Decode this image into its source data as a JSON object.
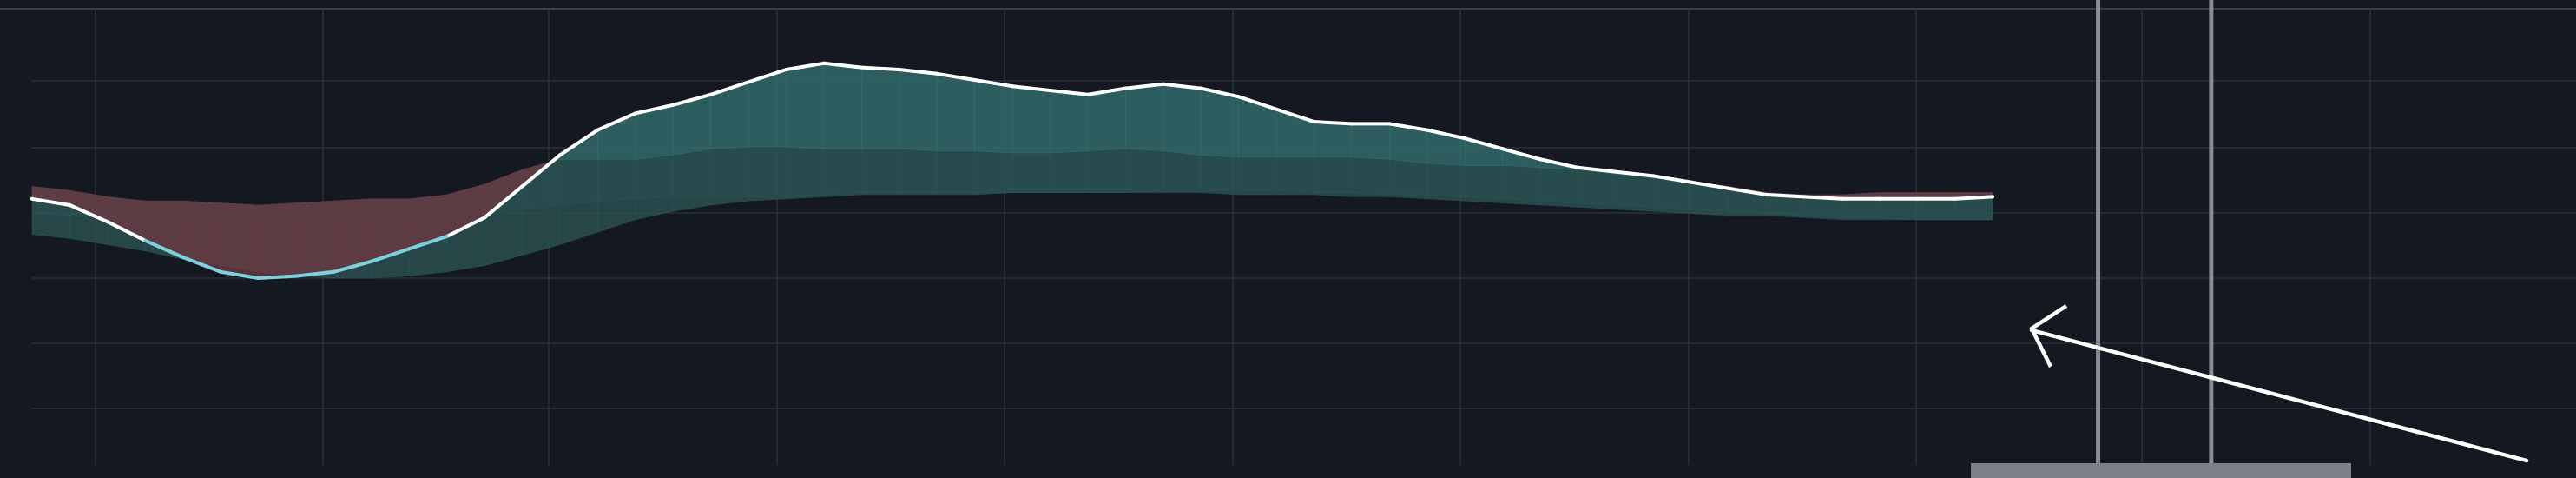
{
  "colors": {
    "background": "#141821",
    "grid": "#2a303b",
    "top_rule": "#3a404b",
    "price_line": "#ffffff",
    "price_line_low": "#7fd0dc",
    "fill_up": "#35716f",
    "fill_down": "#6b3a40",
    "band_up": "#2c5656",
    "band_down": "#4a2f37",
    "cursor_line": "#8a8d96",
    "scrollbar": "#7c7f8a",
    "arrow": "#ffffff"
  },
  "icons": {
    "pointer": "arrow-cursor-icon"
  },
  "chart_data": {
    "type": "area",
    "title": "",
    "xlabel": "",
    "ylabel": "",
    "grid": true,
    "x": [
      0,
      1,
      2,
      3,
      4,
      5,
      6,
      7,
      8,
      9,
      10,
      11,
      12,
      13,
      14,
      15,
      16,
      17,
      18,
      19,
      20,
      21,
      22,
      23,
      24,
      25,
      26,
      27,
      28,
      29,
      30,
      31,
      32,
      33,
      34,
      35,
      36,
      37,
      38,
      39,
      40,
      41,
      42,
      43,
      44,
      45,
      46,
      47,
      48,
      49,
      50,
      51,
      52
    ],
    "xlim": [
      0,
      52
    ],
    "ylim": [
      -1,
      1
    ],
    "series": [
      {
        "values": [
          0.13,
          0.1,
          0.02,
          -0.07,
          -0.15,
          -0.22,
          -0.25,
          -0.24,
          -0.22,
          -0.17,
          -0.11,
          -0.05,
          0.04,
          0.19,
          0.34,
          0.46,
          0.54,
          0.58,
          0.63,
          0.69,
          0.75,
          0.78,
          0.76,
          0.75,
          0.73,
          0.7,
          0.67,
          0.65,
          0.63,
          0.66,
          0.68,
          0.66,
          0.62,
          0.56,
          0.5,
          0.49,
          0.49,
          0.46,
          0.42,
          0.37,
          0.32,
          0.28,
          0.26,
          0.24,
          0.21,
          0.18,
          0.15,
          0.14,
          0.13,
          0.13,
          0.13,
          0.13,
          0.14
        ]
      },
      {
        "values": [
          0.19,
          0.17,
          0.14,
          0.12,
          0.12,
          0.11,
          0.1,
          0.11,
          0.12,
          0.13,
          0.13,
          0.15,
          0.2,
          0.27,
          0.32,
          0.32,
          0.32,
          0.34,
          0.37,
          0.38,
          0.38,
          0.37,
          0.37,
          0.37,
          0.36,
          0.36,
          0.35,
          0.35,
          0.36,
          0.37,
          0.36,
          0.34,
          0.33,
          0.33,
          0.33,
          0.33,
          0.32,
          0.3,
          0.29,
          0.29,
          0.28,
          0.27,
          0.25,
          0.23,
          0.21,
          0.19,
          0.16,
          0.15,
          0.15,
          0.16,
          0.16,
          0.16,
          0.16
        ]
      },
      {
        "values": [
          0.06,
          0.05,
          0.04,
          0.04,
          0.04,
          0.03,
          0.04,
          0.05,
          0.05,
          0.06,
          0.06,
          0.06,
          0.07,
          0.08,
          0.1,
          0.12,
          0.13,
          0.14,
          0.14,
          0.14,
          0.14,
          0.15,
          0.16,
          0.16,
          0.16,
          0.16,
          0.16,
          0.16,
          0.16,
          0.16,
          0.17,
          0.17,
          0.17,
          0.17,
          0.16,
          0.16,
          0.15,
          0.15,
          0.14,
          0.13,
          0.12,
          0.11,
          0.1,
          0.09,
          0.08,
          0.07,
          0.06,
          0.05,
          0.04,
          0.04,
          0.03,
          0.03,
          0.03
        ]
      },
      {
        "values": [
          -0.04,
          -0.06,
          -0.09,
          -0.12,
          -0.16,
          -0.19,
          -0.22,
          -0.24,
          -0.25,
          -0.25,
          -0.24,
          -0.22,
          -0.19,
          -0.14,
          -0.09,
          -0.03,
          0.03,
          0.07,
          0.1,
          0.12,
          0.13,
          0.14,
          0.15,
          0.15,
          0.15,
          0.15,
          0.16,
          0.16,
          0.16,
          0.16,
          0.16,
          0.16,
          0.15,
          0.15,
          0.15,
          0.14,
          0.14,
          0.13,
          0.12,
          0.11,
          0.1,
          0.09,
          0.08,
          0.07,
          0.06,
          0.05,
          0.05,
          0.04,
          0.03,
          0.03,
          0.03,
          0.03,
          0.03
        ]
      }
    ],
    "annotations": [
      {
        "type": "vertical_line",
        "x": 54.8
      },
      {
        "type": "vertical_line",
        "x": 57.8
      }
    ]
  }
}
